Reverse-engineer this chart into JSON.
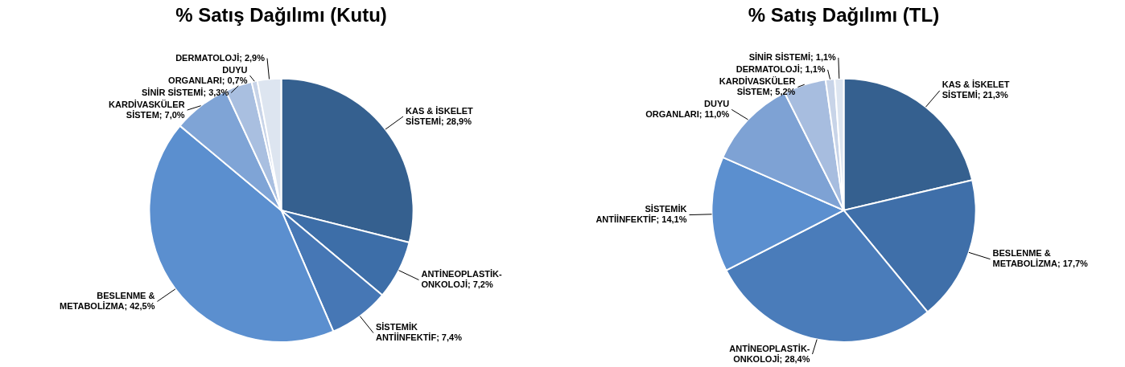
{
  "chart_data": [
    {
      "type": "pie",
      "title": "% Satış Dağılımı (Kutu)",
      "legend": false,
      "categories": [
        "KAS & İSKELET SİSTEMİ",
        "ANTİNEOPLASTİK-ONKOLOJİ",
        "SİSTEMİK ANTİİNFEKTİF",
        "BESLENME & METABOLİZMA",
        "KARDİVASKÜLER SİSTEM",
        "SİNİR SİSTEMİ",
        "DUYU ORGANLARI",
        "DERMATOLOJİ"
      ],
      "values": [
        28.9,
        7.2,
        7.4,
        42.5,
        7.0,
        3.3,
        0.7,
        2.9
      ],
      "value_labels": [
        "28,9%",
        "7,2%",
        "7,4%",
        "42,5%",
        "7,0%",
        "3,3%",
        "0,7%",
        "2,9%"
      ],
      "colors": [
        "#35608f",
        "#3d6ea8",
        "#4677b5",
        "#5b8fcf",
        "#7fa4d6",
        "#a9bfe0",
        "#c8d4e8",
        "#dde5f0"
      ]
    },
    {
      "type": "pie",
      "title": "% Satış Dağılımı (TL)",
      "legend": false,
      "categories": [
        "KAS & İSKELET SİSTEMİ",
        "BESLENME & METABOLİZMA",
        "ANTİNEOPLASTİK-ONKOLOJİ",
        "SİSTEMİK ANTİİNFEKTİF",
        "DUYU ORGANLARI",
        "KARDİVASKÜLER SİSTEM",
        "DERMATOLOJİ",
        "SİNİR SİSTEMİ"
      ],
      "values": [
        21.3,
        17.7,
        28.4,
        14.1,
        11.0,
        5.2,
        1.1,
        1.1
      ],
      "value_labels": [
        "21,3%",
        "17,7%",
        "28,4%",
        "14,1%",
        "11,0%",
        "5,2%",
        "1,1%",
        "1,1%"
      ],
      "colors": [
        "#35608f",
        "#3f6fa9",
        "#4a7cba",
        "#5b8fcf",
        "#7ea2d4",
        "#a7bddf",
        "#c8d4e8",
        "#dde5f0"
      ]
    }
  ]
}
